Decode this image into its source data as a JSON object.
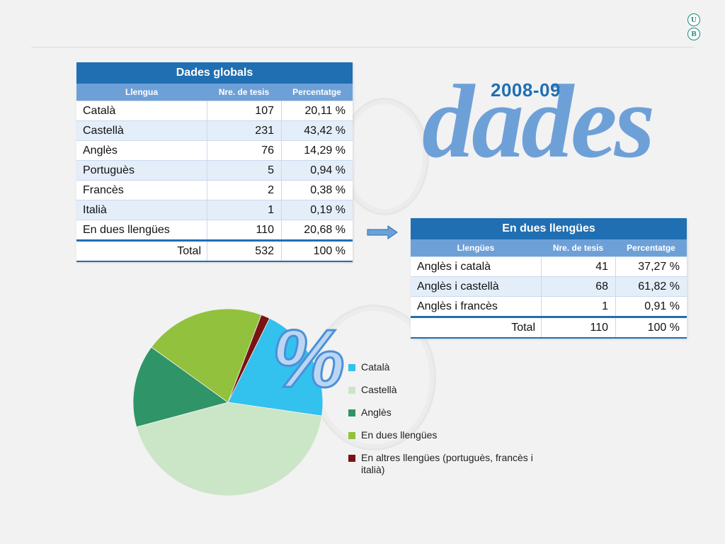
{
  "logo_letters": [
    "U",
    "B"
  ],
  "header": {
    "year": "2008-09",
    "word": "dades"
  },
  "percent_symbol": "%",
  "table_global": {
    "title": "Dades globals",
    "headers": [
      "Llengua",
      "Nre. de tesis",
      "Percentatge"
    ],
    "rows": [
      {
        "lang": "Català",
        "count": "107",
        "pct": "20,11 %"
      },
      {
        "lang": "Castellà",
        "count": "231",
        "pct": "43,42 %"
      },
      {
        "lang": "Anglès",
        "count": "76",
        "pct": "14,29 %"
      },
      {
        "lang": "Portuguès",
        "count": "5",
        "pct": "0,94 %"
      },
      {
        "lang": "Francès",
        "count": "2",
        "pct": "0,38 %"
      },
      {
        "lang": "Italià",
        "count": "1",
        "pct": "0,19 %"
      },
      {
        "lang": "En dues llengües",
        "count": "110",
        "pct": "20,68 %"
      }
    ],
    "total": {
      "label": "Total",
      "count": "532",
      "pct": "100 %"
    }
  },
  "table_two": {
    "title": "En dues llengües",
    "headers": [
      "Llengües",
      "Nre. de tesis",
      "Percentatge"
    ],
    "rows": [
      {
        "lang": "Anglès i català",
        "count": "41",
        "pct": "37,27 %"
      },
      {
        "lang": "Anglès i castellà",
        "count": "68",
        "pct": "61,82 %"
      },
      {
        "lang": "Anglès i francès",
        "count": "1",
        "pct": "0,91 %"
      }
    ],
    "total": {
      "label": "Total",
      "count": "110",
      "pct": "100 %"
    }
  },
  "chart_data": {
    "type": "pie",
    "title": "",
    "slices": [
      {
        "label": "Català",
        "value": 20.11,
        "color": "#33c1ee"
      },
      {
        "label": "Castellà",
        "value": 43.42,
        "color": "#cbe6c6"
      },
      {
        "label": "Anglès",
        "value": 14.29,
        "color": "#2f9467"
      },
      {
        "label": "En dues llengües",
        "value": 20.68,
        "color": "#92c13d"
      },
      {
        "label": "En altres llengües (portuguès, francès i italià)",
        "value": 1.5,
        "color": "#7a1414"
      }
    ],
    "legend_position": "right"
  }
}
